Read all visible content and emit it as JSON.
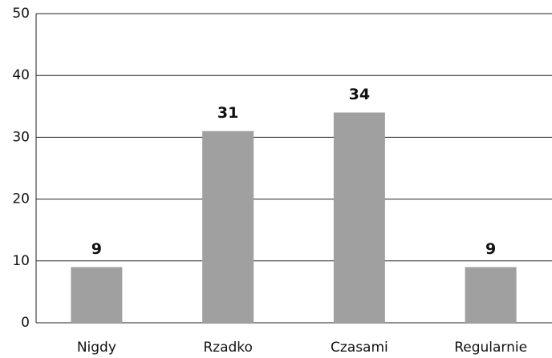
{
  "chart_data": {
    "type": "bar",
    "categories": [
      "Nigdy",
      "Rzadko",
      "Czasami",
      "Regularnie"
    ],
    "values": [
      9,
      31,
      34,
      9
    ],
    "color": "#a0a0a0",
    "ylim": [
      0,
      50
    ],
    "yticks": [
      0,
      10,
      20,
      30,
      40,
      50
    ],
    "grid": true
  }
}
